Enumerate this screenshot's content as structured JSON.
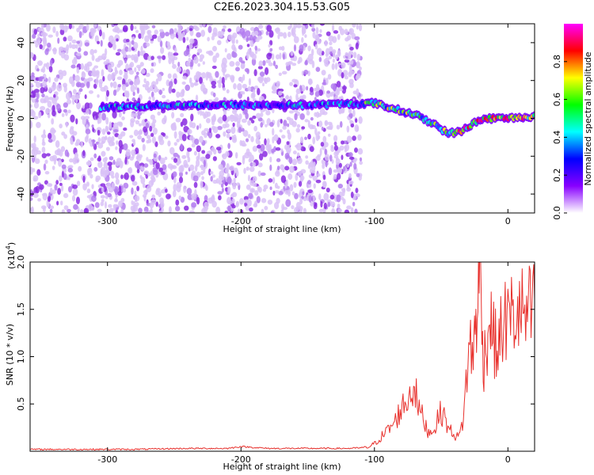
{
  "title": "C2E6.2023.304.15.53.G05",
  "chart_data": [
    {
      "type": "heatmap",
      "xlabel": "Height of straight line (km)",
      "ylabel": "Frequency (Hz)",
      "xlim": [
        -358,
        20
      ],
      "ylim": [
        -50,
        50
      ],
      "xticks": [
        -300,
        -200,
        -100,
        0
      ],
      "xtick_labels": [
        "-300",
        "-200",
        "-100",
        "0"
      ],
      "yticks": [
        -40,
        -20,
        0,
        20,
        40
      ],
      "ytick_labels": [
        "-40",
        "-20",
        "0",
        "20",
        "40"
      ],
      "colorbar": {
        "label": "Normalized spectral amplitude",
        "range": [
          0,
          1
        ],
        "ticks": [
          0,
          0.2,
          0.4,
          0.6,
          0.8
        ],
        "tick_labels": [
          "0.0",
          "0.2",
          "0.4",
          "0.6",
          "0.8"
        ],
        "colormap": [
          "#ffffff",
          "#8800ff",
          "#0000ff",
          "#00ffff",
          "#00ff00",
          "#ffff00",
          "#ff0000",
          "#ff00ff"
        ]
      },
      "signal_ridge": [
        {
          "x": -300,
          "y": 6
        },
        {
          "x": -250,
          "y": 7
        },
        {
          "x": -200,
          "y": 7
        },
        {
          "x": -150,
          "y": 7
        },
        {
          "x": -100,
          "y": 8
        },
        {
          "x": -85,
          "y": 5
        },
        {
          "x": -70,
          "y": 2
        },
        {
          "x": -55,
          "y": -3
        },
        {
          "x": -45,
          "y": -8
        },
        {
          "x": -35,
          "y": -7
        },
        {
          "x": -25,
          "y": -2
        },
        {
          "x": -15,
          "y": 0
        },
        {
          "x": 0,
          "y": 0
        },
        {
          "x": 15,
          "y": 1
        }
      ],
      "noise_extent_x": [
        -358,
        -110
      ]
    },
    {
      "type": "line",
      "xlabel": "Height of straight line (km)",
      "ylabel": "SNR (10 * v/v)",
      "multiplier_label": "(x10",
      "multiplier_exp": "4",
      "xlim": [
        -358,
        20
      ],
      "ylim": [
        0,
        2.0
      ],
      "xticks": [
        -300,
        -200,
        -100,
        0
      ],
      "xtick_labels": [
        "-300",
        "-200",
        "-100",
        "0"
      ],
      "yticks": [
        0.5,
        1.0,
        1.5,
        2.0
      ],
      "ytick_labels": [
        "0.5",
        "1.0",
        "1.5",
        "2.0"
      ],
      "series": [
        {
          "color": "#e8302c",
          "x": [
            -358,
            -320,
            -280,
            -240,
            -210,
            -200,
            -180,
            -150,
            -120,
            -105,
            -100,
            -95,
            -90,
            -85,
            -80,
            -75,
            -72,
            -70,
            -68,
            -65,
            -62,
            -60,
            -58,
            -55,
            -52,
            -50,
            -47,
            -45,
            -42,
            -40,
            -38,
            -36,
            -34,
            -32,
            -30,
            -28,
            -26,
            -25,
            -24,
            -23,
            -22,
            -21,
            -20,
            -19,
            -18,
            -16,
            -15,
            -13,
            -12,
            -10,
            -8,
            -6,
            -4,
            -2,
            0,
            2,
            4,
            6,
            8,
            10,
            12,
            14,
            16,
            18,
            20
          ],
          "y": [
            0.02,
            0.02,
            0.02,
            0.03,
            0.03,
            0.05,
            0.03,
            0.03,
            0.03,
            0.04,
            0.08,
            0.15,
            0.22,
            0.3,
            0.45,
            0.55,
            0.65,
            0.72,
            0.5,
            0.4,
            0.28,
            0.22,
            0.2,
            0.25,
            0.35,
            0.42,
            0.35,
            0.25,
            0.2,
            0.18,
            0.15,
            0.18,
            0.3,
            0.6,
            0.95,
            1.1,
            1.05,
            1.2,
            1.4,
            1.55,
            1.65,
            2.0,
            1.5,
            1.2,
            0.95,
            1.15,
            1.25,
            1.4,
            1.3,
            1.15,
            1.05,
            1.2,
            1.3,
            1.4,
            1.35,
            1.45,
            1.42,
            1.4,
            1.45,
            1.5,
            1.42,
            1.38,
            1.48,
            1.4,
            1.6
          ]
        }
      ]
    }
  ]
}
